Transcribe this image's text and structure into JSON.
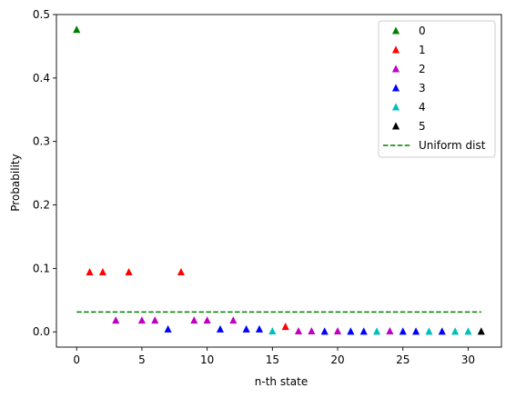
{
  "chart_data": {
    "type": "scatter",
    "title": "",
    "xlabel": "n-th state",
    "ylabel": "Probability",
    "xlim": [
      -1.55,
      32.55
    ],
    "ylim": [
      -0.024,
      0.5
    ],
    "xticks": [
      0,
      5,
      10,
      15,
      20,
      25,
      30
    ],
    "xtick_labels": [
      "0",
      "5",
      "10",
      "15",
      "20",
      "25",
      "30"
    ],
    "yticks": [
      0.0,
      0.1,
      0.2,
      0.3,
      0.4,
      0.5
    ],
    "ytick_labels": [
      "0.0",
      "0.1",
      "0.2",
      "0.3",
      "0.4",
      "0.5"
    ],
    "grid": false,
    "legend_position": "top-right",
    "marker": "triangle-up",
    "series": [
      {
        "name": "0",
        "color": "#008000",
        "x": [
          0
        ],
        "y": [
          0.476
        ]
      },
      {
        "name": "1",
        "color": "#ff0000",
        "x": [
          1,
          2,
          4,
          8,
          16
        ],
        "y": [
          0.094,
          0.094,
          0.094,
          0.094,
          0.008
        ]
      },
      {
        "name": "2",
        "color": "#bf00bf",
        "x": [
          3,
          5,
          6,
          9,
          10,
          12,
          17,
          18,
          20,
          24
        ],
        "y": [
          0.018,
          0.018,
          0.018,
          0.018,
          0.018,
          0.018,
          0.001,
          0.001,
          0.001,
          0.001
        ]
      },
      {
        "name": "3",
        "color": "#0000ff",
        "x": [
          7,
          11,
          13,
          14,
          19,
          21,
          22,
          25,
          26,
          28
        ],
        "y": [
          0.004,
          0.004,
          0.004,
          0.004,
          0.0005,
          0.0005,
          0.0005,
          0.0005,
          0.0005,
          0.0005
        ]
      },
      {
        "name": "4",
        "color": "#00bfbf",
        "x": [
          15,
          23,
          27,
          29,
          30
        ],
        "y": [
          0.001,
          0.0005,
          0.0005,
          0.0005,
          0.0005
        ]
      },
      {
        "name": "5",
        "color": "#000000",
        "x": [
          31
        ],
        "y": [
          0.0005
        ]
      }
    ],
    "reference_line": {
      "name": "Uniform dist",
      "color": "#008000",
      "style": "dashed",
      "x": [
        0,
        31
      ],
      "y": [
        0.03125,
        0.03125
      ]
    }
  }
}
